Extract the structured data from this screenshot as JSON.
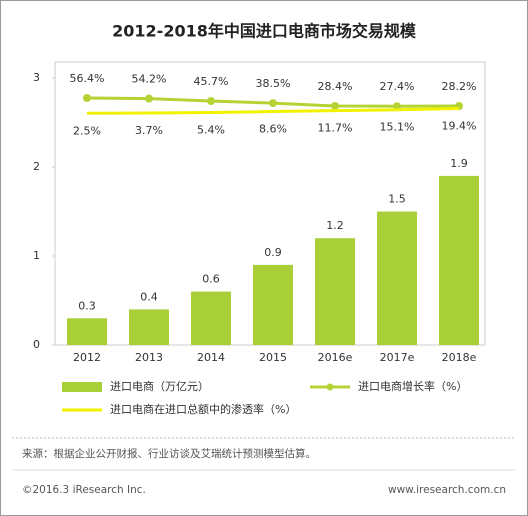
{
  "chart_data": {
    "type": "bar",
    "title": "2012-2018年中国进口电商市场交易规模",
    "categories": [
      "2012",
      "2013",
      "2014",
      "2015",
      "2016e",
      "2017e",
      "2018e"
    ],
    "ylim": [
      0,
      3
    ],
    "yticks": [
      0,
      1,
      2,
      3
    ],
    "y2lim": [
      -815,
      127
    ],
    "series": [
      {
        "name": "进口电商（万亿元）",
        "type": "bar",
        "color": "#a8cf38",
        "values": [
          0.3,
          0.4,
          0.6,
          0.9,
          1.2,
          1.5,
          1.9
        ]
      },
      {
        "name": "进口电商增长率（%）",
        "type": "line",
        "axis": "y2",
        "color": "#b5d334",
        "markers": true,
        "label_side": "above",
        "values": [
          56.4,
          54.2,
          45.7,
          38.5,
          28.4,
          27.4,
          28.2
        ],
        "value_labels": [
          "56.4%",
          "54.2%",
          "45.7%",
          "38.5%",
          "28.4%",
          "27.4%",
          "28.2%"
        ]
      },
      {
        "name": "进口电商在进口总额中的渗透率（%）",
        "type": "line",
        "axis": "y2",
        "color": "#f2f200",
        "markers": false,
        "label_side": "below",
        "values": [
          2.5,
          3.7,
          5.4,
          8.6,
          11.7,
          15.1,
          19.4
        ],
        "value_labels": [
          "2.5%",
          "3.7%",
          "5.4%",
          "8.6%",
          "11.7%",
          "15.1%",
          "19.4%"
        ]
      }
    ],
    "source": "来源：根据企业公开财报、行业访谈及艾瑞统计预测模型估算。",
    "copyright": "©2016.3 iResearch Inc.",
    "website": "www.iresearch.com.cn"
  }
}
